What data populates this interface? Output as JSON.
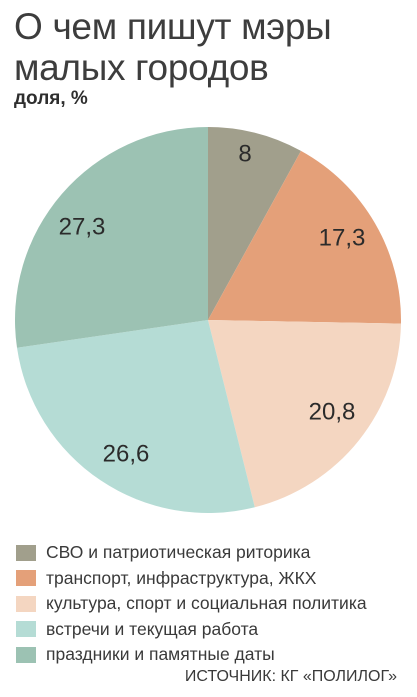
{
  "chart_data": {
    "type": "pie",
    "title": "О чем пишут мэры малых городов",
    "subtitle": "доля, %",
    "source": "ИСТОЧНИК: КГ «ПОЛИЛОГ»",
    "legend_position": "bottom",
    "slices": [
      {
        "label": "СВО и патриотическая риторика",
        "value": 8,
        "value_label": "8",
        "color": "#a19f8c"
      },
      {
        "label": "транспорт, инфраструктура, ЖКХ",
        "value": 17.3,
        "value_label": "17,3",
        "color": "#e4a079"
      },
      {
        "label": "культура, спорт и социальная политика",
        "value": 20.8,
        "value_label": "20,8",
        "color": "#f4d6c1"
      },
      {
        "label": "встречи и текущая работа",
        "value": 26.6,
        "value_label": "26,6",
        "color": "#b5dcd5"
      },
      {
        "label": "праздники и памятные даты",
        "value": 27.3,
        "value_label": "27,3",
        "color": "#9cc2b3"
      }
    ]
  }
}
